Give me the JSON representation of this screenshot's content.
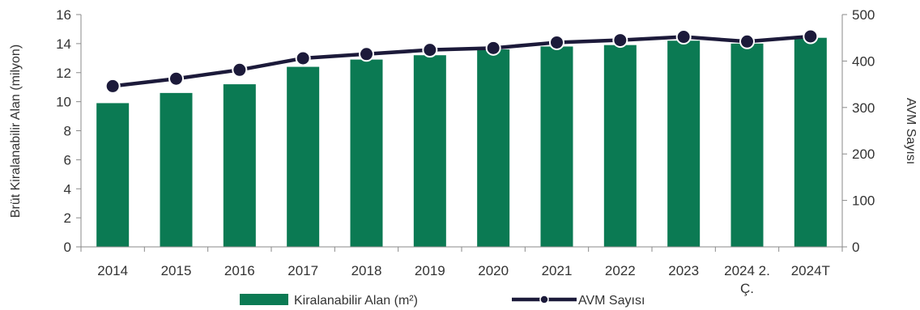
{
  "chart_data": {
    "type": "bar",
    "categories": [
      "2014",
      "2015",
      "2016",
      "2017",
      "2018",
      "2019",
      "2020",
      "2021",
      "2022",
      "2023",
      "2024 2. Ç.",
      "2024T"
    ],
    "category_lines": [
      [
        "2014"
      ],
      [
        "2015"
      ],
      [
        "2016"
      ],
      [
        "2017"
      ],
      [
        "2018"
      ],
      [
        "2019"
      ],
      [
        "2020"
      ],
      [
        "2021"
      ],
      [
        "2022"
      ],
      [
        "2023"
      ],
      [
        "2024 2.",
        "Ç."
      ],
      [
        "2024T"
      ]
    ],
    "series": [
      {
        "name": "Kiralanabilir Alan (m²)",
        "type": "bar",
        "axis": "left",
        "color": "#0b7a53",
        "values": [
          9.9,
          10.6,
          11.2,
          12.4,
          12.9,
          13.2,
          13.6,
          13.8,
          13.9,
          14.2,
          14.0,
          14.4
        ]
      },
      {
        "name": "AVM Sayısı",
        "type": "line",
        "axis": "right",
        "color": "#1c1a3a",
        "values": [
          346,
          362,
          381,
          406,
          415,
          424,
          428,
          440,
          445,
          452,
          442,
          453
        ]
      }
    ],
    "ylabel": "Brüt Kiralanabilir Alan (milyon)",
    "y2label": "AVM Sayısı",
    "ylim": [
      0,
      16
    ],
    "y2lim": [
      0,
      500
    ],
    "yticks": [
      "0",
      "2",
      "4",
      "6",
      "8",
      "10",
      "12",
      "14",
      "16"
    ],
    "y2ticks": [
      "0",
      "100",
      "200",
      "300",
      "400",
      "500"
    ],
    "grid": false,
    "legend": "bottom"
  }
}
